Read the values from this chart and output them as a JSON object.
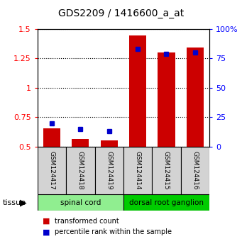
{
  "title": "GDS2209 / 1416600_a_at",
  "samples": [
    "GSM124417",
    "GSM124418",
    "GSM124419",
    "GSM124414",
    "GSM124415",
    "GSM124416"
  ],
  "transformed_count": [
    0.655,
    0.565,
    0.555,
    1.445,
    1.3,
    1.34
  ],
  "percentile_rank": [
    20,
    15,
    13,
    83,
    79,
    80
  ],
  "ylim_left": [
    0.5,
    1.5
  ],
  "ylim_right": [
    0,
    100
  ],
  "yticks_left": [
    0.5,
    0.75,
    1.0,
    1.25,
    1.5
  ],
  "ytick_labels_left": [
    "0.5",
    "0.75",
    "1",
    "1.25",
    "1.5"
  ],
  "yticks_right": [
    0,
    25,
    50,
    75,
    100
  ],
  "ytick_labels_right": [
    "0",
    "25",
    "50",
    "75",
    "100%"
  ],
  "groups": [
    {
      "label": "spinal cord",
      "indices": [
        0,
        1,
        2
      ],
      "color": "#90EE90"
    },
    {
      "label": "dorsal root ganglion",
      "indices": [
        3,
        4,
        5
      ],
      "color": "#00CC00"
    }
  ],
  "bar_color": "#CC0000",
  "marker_color": "#0000CC",
  "bar_width": 0.6,
  "marker_size": 5,
  "sample_bg_color": "#d3d3d3",
  "tissue_label": "tissue"
}
